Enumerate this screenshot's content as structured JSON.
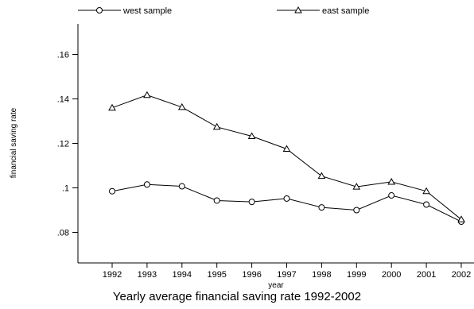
{
  "chart_data": {
    "type": "line",
    "title": "Yearly average financial saving rate 1992-2002",
    "xlabel": "year",
    "ylabel": "financial saving rate",
    "x": [
      1992,
      1993,
      1994,
      1995,
      1996,
      1997,
      1998,
      1999,
      2000,
      2001,
      2002
    ],
    "xlim": [
      1992,
      2002
    ],
    "ylim": [
      0.07,
      0.17
    ],
    "y_ticks": [
      ".08",
      ".1",
      ".12",
      ".14",
      ".16"
    ],
    "y_tick_values": [
      0.08,
      0.1,
      0.12,
      0.14,
      0.16
    ],
    "x_ticks": [
      "1992",
      "1993",
      "1994",
      "1995",
      "1996",
      "1997",
      "1998",
      "1999",
      "2000",
      "2001",
      "2002"
    ],
    "grid": false,
    "legend_position": "top",
    "series": [
      {
        "name": "west sample",
        "marker": "circle",
        "color": "#000000",
        "values": [
          0.0985,
          0.1015,
          0.1007,
          0.0943,
          0.0937,
          0.0952,
          0.0912,
          0.09,
          0.0966,
          0.0925,
          0.0848
        ]
      },
      {
        "name": "east sample",
        "marker": "triangle",
        "color": "#000000",
        "values": [
          0.136,
          0.1417,
          0.1363,
          0.1274,
          0.1232,
          0.1175,
          0.1053,
          0.1005,
          0.1027,
          0.0985,
          0.0858
        ]
      }
    ]
  }
}
